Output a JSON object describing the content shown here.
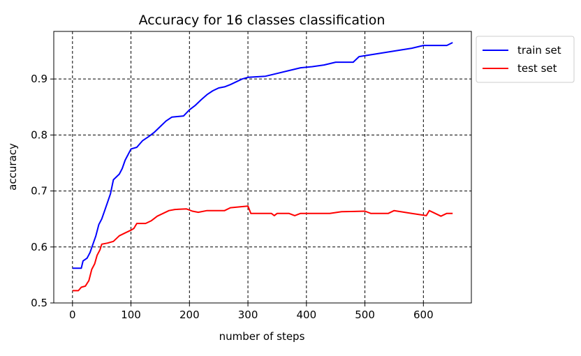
{
  "chart_data": {
    "type": "line",
    "title": "Accuracy for 16 classes classification",
    "xlabel": "number of steps",
    "ylabel": "accuracy",
    "xlim": [
      -32,
      682
    ],
    "ylim": [
      0.5,
      0.985
    ],
    "xticks": [
      0,
      100,
      200,
      300,
      400,
      500,
      600
    ],
    "yticks": [
      0.5,
      0.6,
      0.7,
      0.8,
      0.9
    ],
    "xtick_labels": [
      "0",
      "100",
      "200",
      "300",
      "400",
      "500",
      "600"
    ],
    "ytick_labels": [
      "0.5",
      "0.6",
      "0.7",
      "0.8",
      "0.9"
    ],
    "grid": true,
    "grid_style": "dashed",
    "legend_position": "outside-top-right",
    "series": [
      {
        "name": "train set",
        "color": "#0000ff",
        "points": [
          [
            0,
            0.562
          ],
          [
            15,
            0.562
          ],
          [
            18,
            0.575
          ],
          [
            25,
            0.58
          ],
          [
            30,
            0.59
          ],
          [
            35,
            0.605
          ],
          [
            40,
            0.62
          ],
          [
            45,
            0.64
          ],
          [
            50,
            0.65
          ],
          [
            55,
            0.665
          ],
          [
            60,
            0.68
          ],
          [
            65,
            0.695
          ],
          [
            70,
            0.72
          ],
          [
            75,
            0.725
          ],
          [
            80,
            0.73
          ],
          [
            85,
            0.74
          ],
          [
            90,
            0.755
          ],
          [
            95,
            0.765
          ],
          [
            100,
            0.775
          ],
          [
            110,
            0.778
          ],
          [
            120,
            0.79
          ],
          [
            130,
            0.797
          ],
          [
            140,
            0.805
          ],
          [
            150,
            0.815
          ],
          [
            160,
            0.825
          ],
          [
            170,
            0.832
          ],
          [
            190,
            0.834
          ],
          [
            200,
            0.845
          ],
          [
            210,
            0.853
          ],
          [
            220,
            0.863
          ],
          [
            230,
            0.872
          ],
          [
            240,
            0.879
          ],
          [
            250,
            0.884
          ],
          [
            260,
            0.886
          ],
          [
            270,
            0.89
          ],
          [
            280,
            0.895
          ],
          [
            290,
            0.9
          ],
          [
            300,
            0.903
          ],
          [
            330,
            0.905
          ],
          [
            350,
            0.91
          ],
          [
            370,
            0.915
          ],
          [
            390,
            0.92
          ],
          [
            410,
            0.922
          ],
          [
            430,
            0.925
          ],
          [
            450,
            0.93
          ],
          [
            480,
            0.93
          ],
          [
            490,
            0.94
          ],
          [
            520,
            0.945
          ],
          [
            550,
            0.95
          ],
          [
            580,
            0.955
          ],
          [
            600,
            0.96
          ],
          [
            640,
            0.96
          ],
          [
            650,
            0.965
          ]
        ]
      },
      {
        "name": "test set",
        "color": "#ff0000",
        "points": [
          [
            0,
            0.522
          ],
          [
            10,
            0.522
          ],
          [
            15,
            0.528
          ],
          [
            22,
            0.53
          ],
          [
            28,
            0.54
          ],
          [
            33,
            0.56
          ],
          [
            38,
            0.57
          ],
          [
            42,
            0.585
          ],
          [
            47,
            0.595
          ],
          [
            50,
            0.605
          ],
          [
            60,
            0.607
          ],
          [
            70,
            0.61
          ],
          [
            80,
            0.62
          ],
          [
            90,
            0.625
          ],
          [
            100,
            0.63
          ],
          [
            105,
            0.633
          ],
          [
            110,
            0.642
          ],
          [
            125,
            0.642
          ],
          [
            135,
            0.647
          ],
          [
            145,
            0.655
          ],
          [
            155,
            0.66
          ],
          [
            165,
            0.665
          ],
          [
            175,
            0.667
          ],
          [
            195,
            0.668
          ],
          [
            205,
            0.664
          ],
          [
            215,
            0.662
          ],
          [
            230,
            0.665
          ],
          [
            260,
            0.665
          ],
          [
            270,
            0.67
          ],
          [
            290,
            0.672
          ],
          [
            300,
            0.673
          ],
          [
            305,
            0.66
          ],
          [
            340,
            0.66
          ],
          [
            345,
            0.656
          ],
          [
            350,
            0.66
          ],
          [
            370,
            0.66
          ],
          [
            380,
            0.656
          ],
          [
            390,
            0.66
          ],
          [
            440,
            0.66
          ],
          [
            460,
            0.663
          ],
          [
            500,
            0.664
          ],
          [
            510,
            0.66
          ],
          [
            540,
            0.66
          ],
          [
            550,
            0.665
          ],
          [
            580,
            0.66
          ],
          [
            605,
            0.656
          ],
          [
            610,
            0.665
          ],
          [
            620,
            0.66
          ],
          [
            630,
            0.655
          ],
          [
            640,
            0.66
          ],
          [
            650,
            0.66
          ]
        ]
      }
    ]
  }
}
